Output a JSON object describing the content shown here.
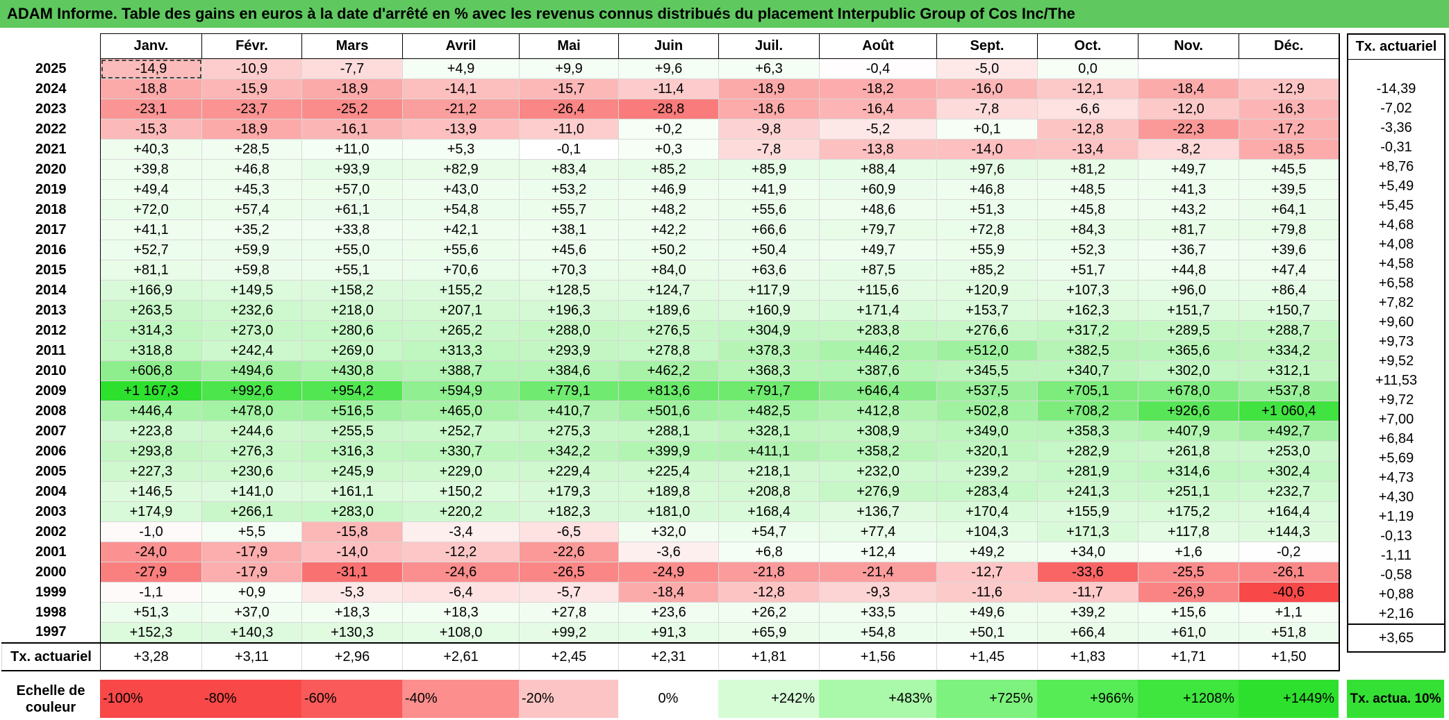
{
  "title": "ADAM Informe. Table des gains en euros à la date d'arrêté en % avec les revenus connus distribués du placement Interpublic Group of Cos Inc/The",
  "months": [
    "Janv.",
    "Févr.",
    "Mars",
    "Avril",
    "Mai",
    "Juin",
    "Juil.",
    "Août",
    "Sept.",
    "Oct.",
    "Nov.",
    "Déc."
  ],
  "side_header": "Tx. actuariel",
  "rows": [
    {
      "year": "2025",
      "values": [
        "-14,9",
        "-10,9",
        "-7,7",
        "+4,9",
        "+9,9",
        "+9,6",
        "+6,3",
        "-0,4",
        "-5,0",
        "0,0",
        "",
        ""
      ],
      "tx": ""
    },
    {
      "year": "2024",
      "values": [
        "-18,8",
        "-15,9",
        "-18,9",
        "-14,1",
        "-15,7",
        "-11,4",
        "-18,9",
        "-18,2",
        "-16,0",
        "-12,1",
        "-18,4",
        "-12,9"
      ],
      "tx": "-14,39"
    },
    {
      "year": "2023",
      "values": [
        "-23,1",
        "-23,7",
        "-25,2",
        "-21,2",
        "-26,4",
        "-28,8",
        "-18,6",
        "-16,4",
        "-7,8",
        "-6,6",
        "-12,0",
        "-16,3"
      ],
      "tx": "-7,02"
    },
    {
      "year": "2022",
      "values": [
        "-15,3",
        "-18,9",
        "-16,1",
        "-13,9",
        "-11,0",
        "+0,2",
        "-9,8",
        "-5,2",
        "+0,1",
        "-12,8",
        "-22,3",
        "-17,2"
      ],
      "tx": "-3,36"
    },
    {
      "year": "2021",
      "values": [
        "+40,3",
        "+28,5",
        "+11,0",
        "+5,3",
        "-0,1",
        "+0,3",
        "-7,8",
        "-13,8",
        "-14,0",
        "-13,4",
        "-8,2",
        "-18,5"
      ],
      "tx": "-0,31"
    },
    {
      "year": "2020",
      "values": [
        "+39,8",
        "+46,8",
        "+93,9",
        "+82,9",
        "+83,4",
        "+85,2",
        "+85,9",
        "+88,4",
        "+97,6",
        "+81,2",
        "+49,7",
        "+45,5"
      ],
      "tx": "+8,76"
    },
    {
      "year": "2019",
      "values": [
        "+49,4",
        "+45,3",
        "+57,0",
        "+43,0",
        "+53,2",
        "+46,9",
        "+41,9",
        "+60,9",
        "+46,8",
        "+48,5",
        "+41,3",
        "+39,5"
      ],
      "tx": "+5,49"
    },
    {
      "year": "2018",
      "values": [
        "+72,0",
        "+57,4",
        "+61,1",
        "+54,8",
        "+55,7",
        "+48,2",
        "+55,6",
        "+48,6",
        "+51,3",
        "+45,8",
        "+43,2",
        "+64,1"
      ],
      "tx": "+5,45"
    },
    {
      "year": "2017",
      "values": [
        "+41,1",
        "+35,2",
        "+33,8",
        "+42,1",
        "+38,1",
        "+42,2",
        "+66,6",
        "+79,7",
        "+72,8",
        "+84,3",
        "+81,7",
        "+79,8"
      ],
      "tx": "+4,68"
    },
    {
      "year": "2016",
      "values": [
        "+52,7",
        "+59,9",
        "+55,0",
        "+55,6",
        "+45,6",
        "+50,2",
        "+50,4",
        "+49,7",
        "+55,9",
        "+52,3",
        "+36,7",
        "+39,6"
      ],
      "tx": "+4,08"
    },
    {
      "year": "2015",
      "values": [
        "+81,1",
        "+59,8",
        "+55,1",
        "+70,6",
        "+70,3",
        "+84,0",
        "+63,6",
        "+87,5",
        "+85,2",
        "+51,7",
        "+44,8",
        "+47,4"
      ],
      "tx": "+4,58"
    },
    {
      "year": "2014",
      "values": [
        "+166,9",
        "+149,5",
        "+158,2",
        "+155,2",
        "+128,5",
        "+124,7",
        "+117,9",
        "+115,6",
        "+120,9",
        "+107,3",
        "+96,0",
        "+86,4"
      ],
      "tx": "+6,58"
    },
    {
      "year": "2013",
      "values": [
        "+263,5",
        "+232,6",
        "+218,0",
        "+207,1",
        "+196,3",
        "+189,6",
        "+160,9",
        "+171,4",
        "+153,7",
        "+162,3",
        "+151,7",
        "+150,7"
      ],
      "tx": "+7,82"
    },
    {
      "year": "2012",
      "values": [
        "+314,3",
        "+273,0",
        "+280,6",
        "+265,2",
        "+288,0",
        "+276,5",
        "+304,9",
        "+283,8",
        "+276,6",
        "+317,2",
        "+289,5",
        "+288,7"
      ],
      "tx": "+9,60"
    },
    {
      "year": "2011",
      "values": [
        "+318,8",
        "+242,4",
        "+269,0",
        "+313,3",
        "+293,9",
        "+278,8",
        "+378,3",
        "+446,2",
        "+512,0",
        "+382,5",
        "+365,6",
        "+334,2"
      ],
      "tx": "+9,73"
    },
    {
      "year": "2010",
      "values": [
        "+606,8",
        "+494,6",
        "+430,8",
        "+388,7",
        "+384,6",
        "+462,2",
        "+368,3",
        "+387,6",
        "+345,5",
        "+340,7",
        "+302,0",
        "+312,1"
      ],
      "tx": "+9,52"
    },
    {
      "year": "2009",
      "values": [
        "+1 167,3",
        "+992,6",
        "+954,2",
        "+594,9",
        "+779,1",
        "+813,6",
        "+791,7",
        "+646,4",
        "+537,5",
        "+705,1",
        "+678,0",
        "+537,8"
      ],
      "tx": "+11,53"
    },
    {
      "year": "2008",
      "values": [
        "+446,4",
        "+478,0",
        "+516,5",
        "+465,0",
        "+410,7",
        "+501,6",
        "+482,5",
        "+412,8",
        "+502,8",
        "+708,2",
        "+926,6",
        "+1 060,4"
      ],
      "tx": "+9,72"
    },
    {
      "year": "2007",
      "values": [
        "+223,8",
        "+244,6",
        "+255,5",
        "+252,7",
        "+275,3",
        "+288,1",
        "+328,1",
        "+308,9",
        "+349,0",
        "+358,3",
        "+407,9",
        "+492,7"
      ],
      "tx": "+7,00"
    },
    {
      "year": "2006",
      "values": [
        "+293,8",
        "+276,3",
        "+316,3",
        "+330,7",
        "+342,2",
        "+399,9",
        "+411,1",
        "+358,2",
        "+320,1",
        "+282,9",
        "+261,8",
        "+253,0"
      ],
      "tx": "+6,84"
    },
    {
      "year": "2005",
      "values": [
        "+227,3",
        "+230,6",
        "+245,9",
        "+229,0",
        "+229,4",
        "+225,4",
        "+218,1",
        "+232,0",
        "+239,2",
        "+281,9",
        "+314,6",
        "+302,4"
      ],
      "tx": "+5,69"
    },
    {
      "year": "2004",
      "values": [
        "+146,5",
        "+141,0",
        "+161,1",
        "+150,2",
        "+179,3",
        "+189,8",
        "+208,8",
        "+276,9",
        "+283,4",
        "+241,3",
        "+251,1",
        "+232,7"
      ],
      "tx": "+4,73"
    },
    {
      "year": "2003",
      "values": [
        "+174,9",
        "+266,1",
        "+283,0",
        "+220,2",
        "+182,3",
        "+181,0",
        "+168,4",
        "+136,7",
        "+170,4",
        "+155,9",
        "+175,2",
        "+164,4"
      ],
      "tx": "+4,30"
    },
    {
      "year": "2002",
      "values": [
        "-1,0",
        "+5,5",
        "-15,8",
        "-3,4",
        "-6,5",
        "+32,0",
        "+54,7",
        "+77,4",
        "+104,3",
        "+171,3",
        "+117,8",
        "+144,3"
      ],
      "tx": "+1,19"
    },
    {
      "year": "2001",
      "values": [
        "-24,0",
        "-17,9",
        "-14,0",
        "-12,2",
        "-22,6",
        "-3,6",
        "+6,8",
        "+12,4",
        "+49,2",
        "+34,0",
        "+1,6",
        "-0,2"
      ],
      "tx": "-0,13"
    },
    {
      "year": "2000",
      "values": [
        "-27,9",
        "-17,9",
        "-31,1",
        "-24,6",
        "-26,5",
        "-24,9",
        "-21,8",
        "-21,4",
        "-12,7",
        "-33,6",
        "-25,5",
        "-26,1"
      ],
      "tx": "-1,11"
    },
    {
      "year": "1999",
      "values": [
        "-1,1",
        "+0,9",
        "-5,3",
        "-6,4",
        "-5,7",
        "-18,4",
        "-12,8",
        "-9,3",
        "-11,6",
        "-11,7",
        "-26,9",
        "-40,6"
      ],
      "tx": "-0,58"
    },
    {
      "year": "1998",
      "values": [
        "+51,3",
        "+37,0",
        "+18,3",
        "+18,3",
        "+27,8",
        "+23,6",
        "+26,2",
        "+33,5",
        "+49,6",
        "+39,2",
        "+15,6",
        "+1,1"
      ],
      "tx": "+0,88"
    },
    {
      "year": "1997",
      "values": [
        "+152,3",
        "+140,3",
        "+130,3",
        "+108,0",
        "+99,2",
        "+91,3",
        "+65,9",
        "+54,8",
        "+50,1",
        "+66,4",
        "+61,0",
        "+51,8"
      ],
      "tx": "+2,16"
    }
  ],
  "tx_row": {
    "label": "Tx. actuariel",
    "values": [
      "+3,28",
      "+3,11",
      "+2,96",
      "+2,61",
      "+2,45",
      "+2,31",
      "+1,81",
      "+1,56",
      "+1,45",
      "+1,83",
      "+1,71",
      "+1,50"
    ],
    "total": "+3,65"
  },
  "scale": {
    "label": "Echelle de couleur",
    "items": [
      {
        "text": "-100%",
        "color": "#f84848"
      },
      {
        "text": "-80%",
        "color": "#f84848"
      },
      {
        "text": "-60%",
        "color": "#fa5a5a"
      },
      {
        "text": "-40%",
        "color": "#fc8e8e"
      },
      {
        "text": "-20%",
        "color": "#fcc4c4"
      },
      {
        "text": "0%",
        "color": "#ffffff"
      },
      {
        "text": "+242%",
        "color": "#d6fcd6"
      },
      {
        "text": "+483%",
        "color": "#aaf8aa"
      },
      {
        "text": "+725%",
        "color": "#7ef27e"
      },
      {
        "text": "+966%",
        "color": "#56ec56"
      },
      {
        "text": "+1208%",
        "color": "#3ee63e"
      },
      {
        "text": "+1449%",
        "color": "#2ee02e"
      }
    ],
    "side_label": "Tx. actua. 10%",
    "side_color": "#35e035"
  },
  "colors": {
    "title_bg": "#5fc85f",
    "neg_max": "#f84848",
    "pos_max": "#2ee02e"
  }
}
